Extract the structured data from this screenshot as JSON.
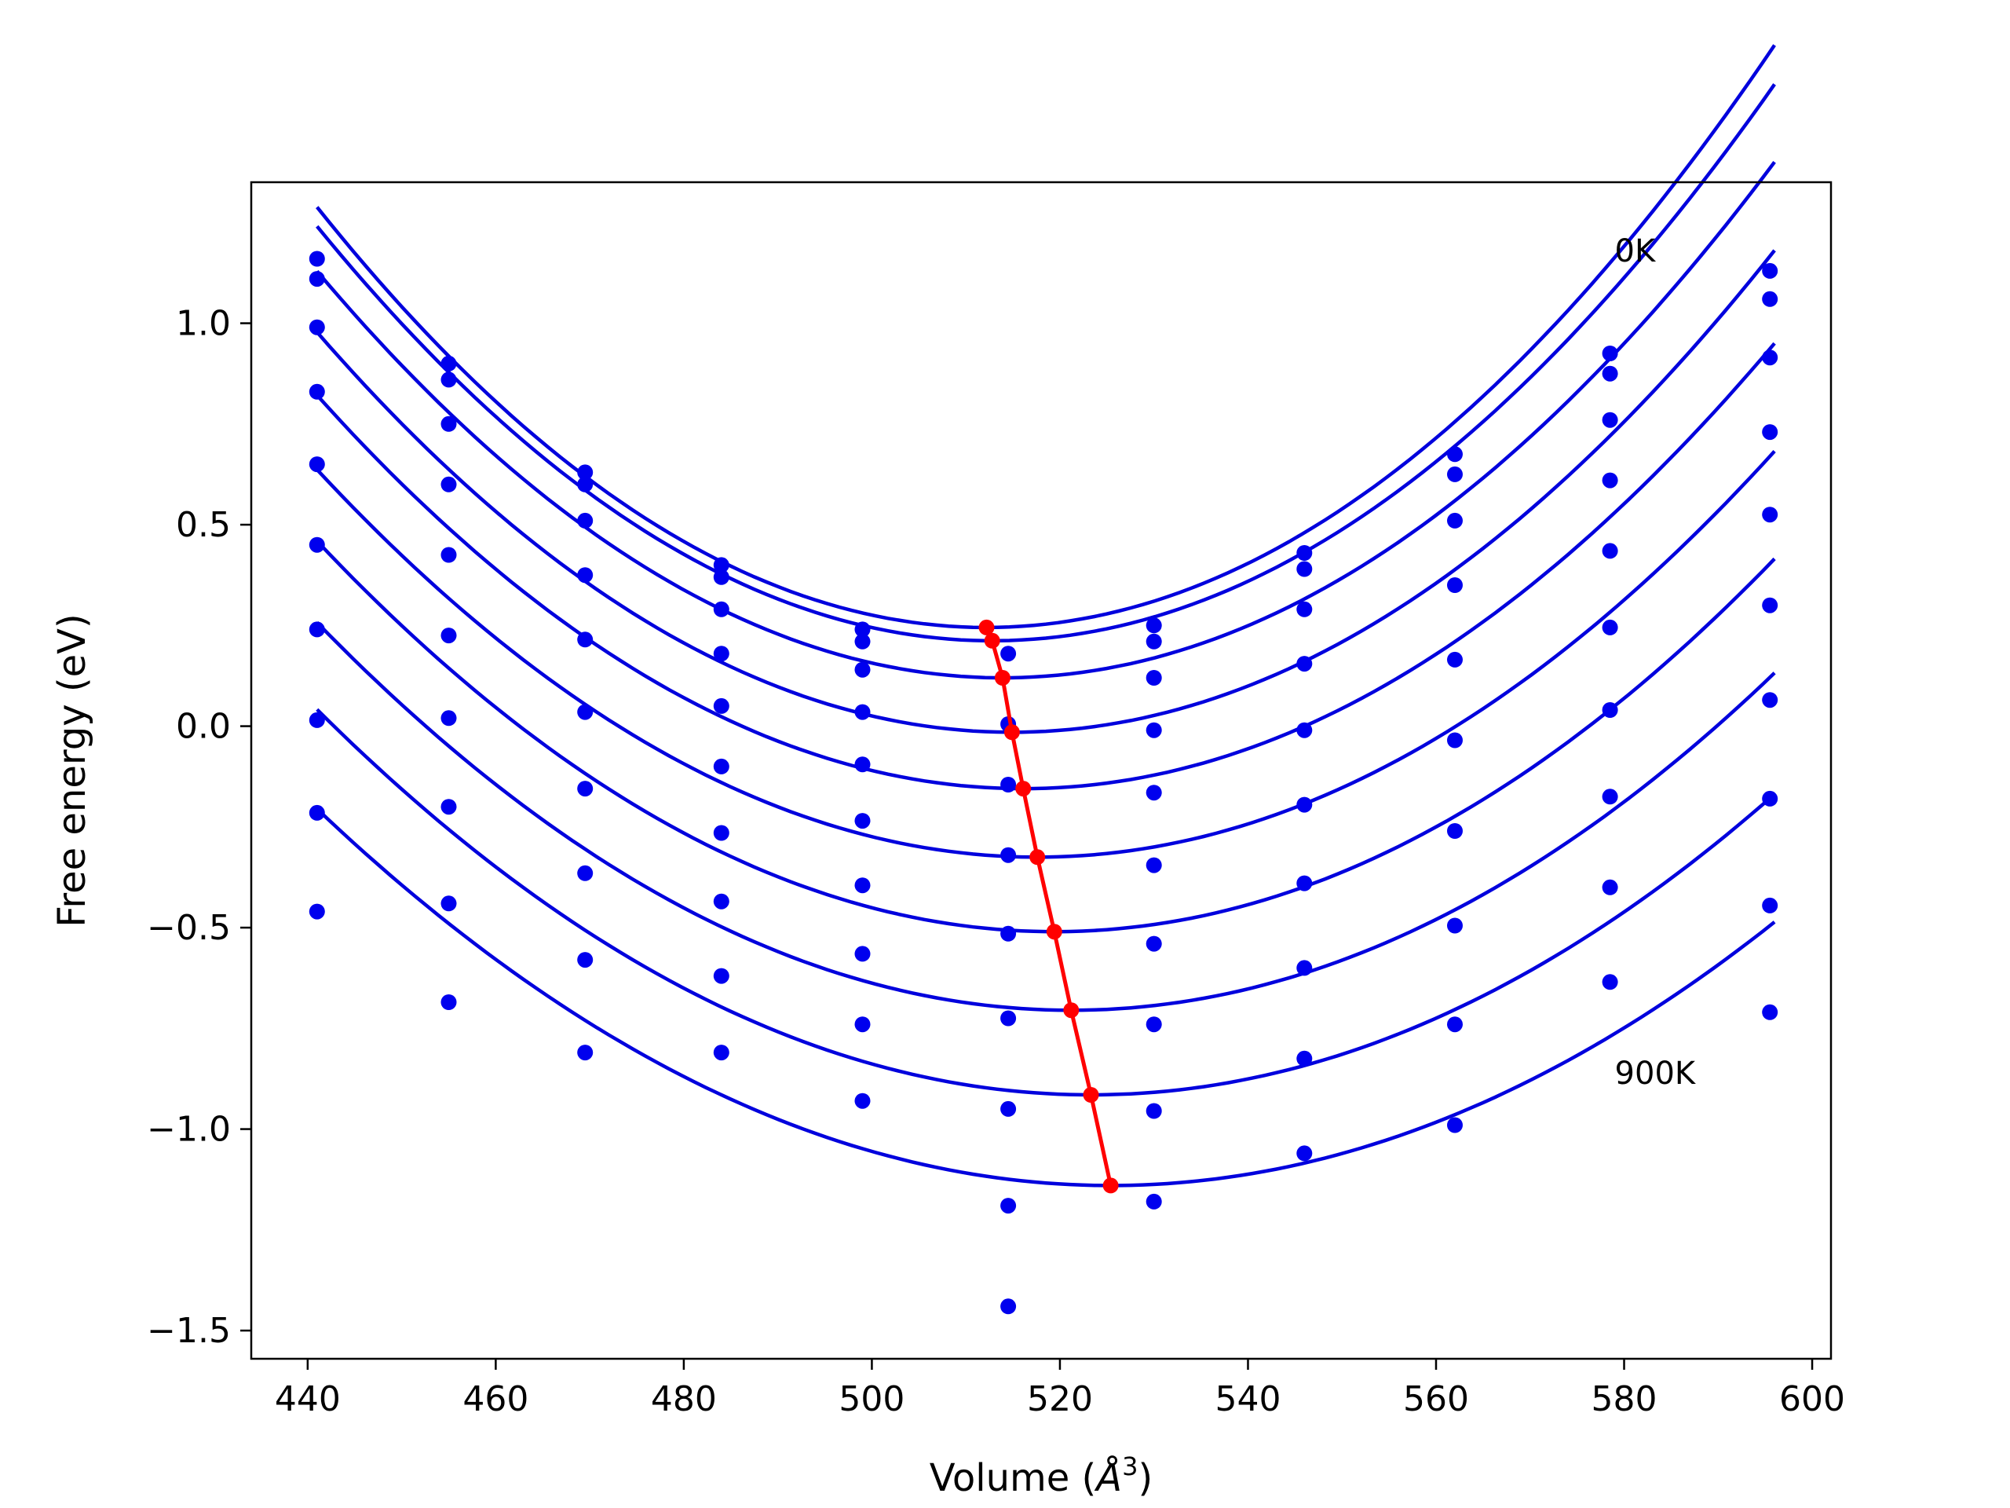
{
  "chart_data": {
    "type": "scatter",
    "xlabel": "Volume (",
    "xlabel_unit": "Å",
    "xlabel_sup": "3",
    "xlabel_close": ")",
    "ylabel": "Free energy (eV)",
    "xlim": [
      434,
      602
    ],
    "ylim": [
      -1.57,
      1.35
    ],
    "xticks": [
      440,
      460,
      480,
      500,
      520,
      540,
      560,
      580,
      600
    ],
    "yticks": [
      -1.5,
      -1.0,
      -0.5,
      0.0,
      0.5,
      1.0
    ],
    "ytick_labels": [
      "−1.5",
      "−1.0",
      "−0.5",
      "0.0",
      "0.5",
      "1.0"
    ],
    "grid": false,
    "colors": {
      "points": "#0000ee",
      "fits": "#0000dd",
      "minima": "#ff0000"
    },
    "annotations": [
      {
        "text": "0K",
        "x": 579,
        "y": 1.18
      },
      {
        "text": "900K",
        "x": 579,
        "y": -0.86
      }
    ],
    "fit_x_range": [
      441,
      596
    ],
    "volumes": [
      441,
      455,
      469.5,
      484,
      499,
      514.5,
      530,
      546,
      562,
      578.5,
      595.5
    ],
    "series": [
      {
        "values": [
          1.16,
          0.9,
          0.63,
          0.4,
          0.24,
          0.18,
          0.25,
          0.43,
          0.675,
          0.925,
          1.13
        ],
        "fit": {
          "a": 0.0002058,
          "v0": 512.2,
          "e0": 0.245
        },
        "minimum": {
          "x": 512.2,
          "y": 0.245
        }
      },
      {
        "values": [
          1.11,
          0.86,
          0.6,
          0.37,
          0.21,
          0.005,
          0.21,
          0.39,
          0.625,
          0.875,
          1.06
        ],
        "fit": {
          "a": 0.0001995,
          "v0": 512.8,
          "e0": 0.212
        },
        "minimum": {
          "x": 512.8,
          "y": 0.212
        }
      },
      {
        "values": [
          0.99,
          0.75,
          0.51,
          0.29,
          0.14,
          -0.145,
          0.12,
          0.29,
          0.51,
          0.76,
          0.915
        ],
        "fit": {
          "a": 0.0001899,
          "v0": 513.9,
          "e0": 0.12
        },
        "minimum": {
          "x": 513.9,
          "y": 0.12
        }
      },
      {
        "values": [
          0.83,
          0.6,
          0.375,
          0.18,
          0.035,
          -0.32,
          -0.01,
          0.155,
          0.35,
          0.61,
          0.73
        ],
        "fit": {
          "a": 0.0001818,
          "v0": 514.9,
          "e0": -0.015
        },
        "minimum": {
          "x": 514.9,
          "y": -0.015
        }
      },
      {
        "values": [
          0.65,
          0.425,
          0.215,
          0.05,
          -0.095,
          -0.515,
          -0.165,
          -0.01,
          0.165,
          0.435,
          0.525
        ],
        "fit": {
          "a": 0.0001731,
          "v0": 516.1,
          "e0": -0.155
        },
        "minimum": {
          "x": 516.1,
          "y": -0.155
        }
      },
      {
        "values": [
          0.45,
          0.225,
          0.035,
          -0.1,
          -0.235,
          -0.725,
          -0.345,
          -0.195,
          -0.035,
          0.245,
          0.3
        ],
        "fit": {
          "a": 0.0001639,
          "v0": 517.6,
          "e0": -0.325
        },
        "minimum": {
          "x": 517.6,
          "y": -0.325
        }
      },
      {
        "values": [
          0.24,
          0.02,
          -0.155,
          -0.265,
          -0.395,
          -0.95,
          -0.54,
          -0.39,
          -0.26,
          0.04,
          0.065
        ],
        "fit": {
          "a": 0.0001577,
          "v0": 519.4,
          "e0": -0.51
        },
        "minimum": {
          "x": 519.4,
          "y": -0.51
        }
      },
      {
        "values": [
          0.015,
          -0.2,
          -0.365,
          -0.435,
          -0.565,
          -1.19,
          -0.74,
          -0.6,
          -0.495,
          -0.175,
          -0.18
        ],
        "fit": {
          "a": 0.0001496,
          "v0": 521.2,
          "e0": -0.705
        },
        "minimum": {
          "x": 521.2,
          "y": -0.705
        }
      },
      {
        "values": [
          -0.215,
          -0.44,
          -0.58,
          -0.62,
          -0.74,
          -1.44,
          -0.955,
          -0.825,
          -0.74,
          -0.4,
          -0.445
        ],
        "fit": {
          "a": 0.0001412,
          "v0": 523.3,
          "e0": -0.915
        },
        "minimum": {
          "x": 523.3,
          "y": -0.915
        }
      },
      {
        "values": [
          -0.46,
          -0.685,
          -0.81,
          -0.81,
          -0.93,
          null,
          -1.18,
          -1.06,
          -0.99,
          -0.635,
          -0.71
        ],
        "fit": {
          "a": 0.0001312,
          "v0": 525.4,
          "e0": -1.14
        },
        "minimum": {
          "x": 525.4,
          "y": -1.14
        }
      }
    ]
  }
}
